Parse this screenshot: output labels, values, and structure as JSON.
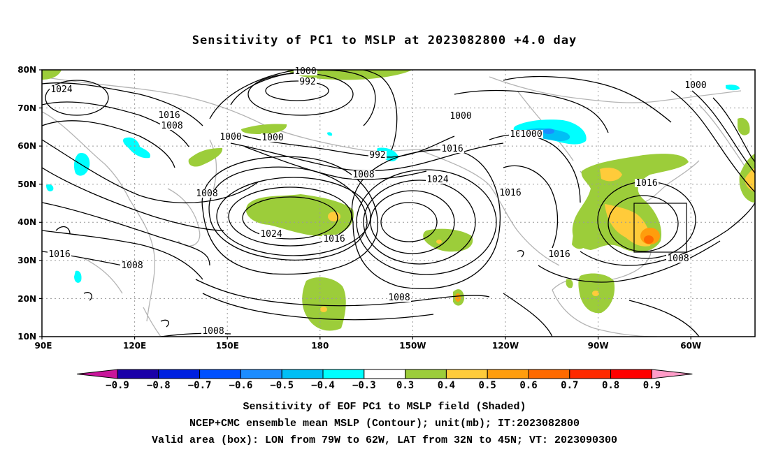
{
  "title": "Sensitivity of PC1 to MSLP at 2023082800 +4.0 day",
  "lat_labels": [
    "80N",
    "70N",
    "60N",
    "50N",
    "40N",
    "30N",
    "20N",
    "10N"
  ],
  "lon_labels": [
    "90E",
    "120E",
    "150E",
    "180",
    "150W",
    "120W",
    "90W",
    "60W"
  ],
  "contour_labels": [
    "1000",
    "992",
    "1024",
    "1016",
    "1008",
    "1000",
    "1000",
    "1000",
    "992",
    "1008",
    "1016",
    "1024",
    "1000",
    "1000",
    "1000",
    "1016",
    "1008",
    "1024",
    "1016",
    "1016",
    "1008",
    "1008",
    "1016",
    "1016",
    "1008",
    "1008"
  ],
  "colorbar": {
    "labels": [
      "-0.9",
      "-0.8",
      "-0.7",
      "-0.6",
      "-0.5",
      "-0.4",
      "-0.3",
      "0.3",
      "0.4",
      "0.5",
      "0.6",
      "0.7",
      "0.8",
      "0.9"
    ],
    "colors": [
      "#c8159a",
      "#1a00a8",
      "#0020e0",
      "#0050ff",
      "#1b8cff",
      "#00bff5",
      "#00ffff",
      "#ffffff",
      "#9ccd3a",
      "#ffcb3a",
      "#ff9d0d",
      "#ff6a00",
      "#ff2a00",
      "#ff0000",
      "#ff9cc8"
    ]
  },
  "captions": [
    "Sensitivity of EOF PC1 to MSLP field (Shaded)",
    "NCEP+CMC ensemble mean MSLP (Contour); unit(mb); IT:2023082800",
    "Valid area (box): LON from 79W to 62W, LAT from 32N to 45N; VT: 2023090300"
  ]
}
